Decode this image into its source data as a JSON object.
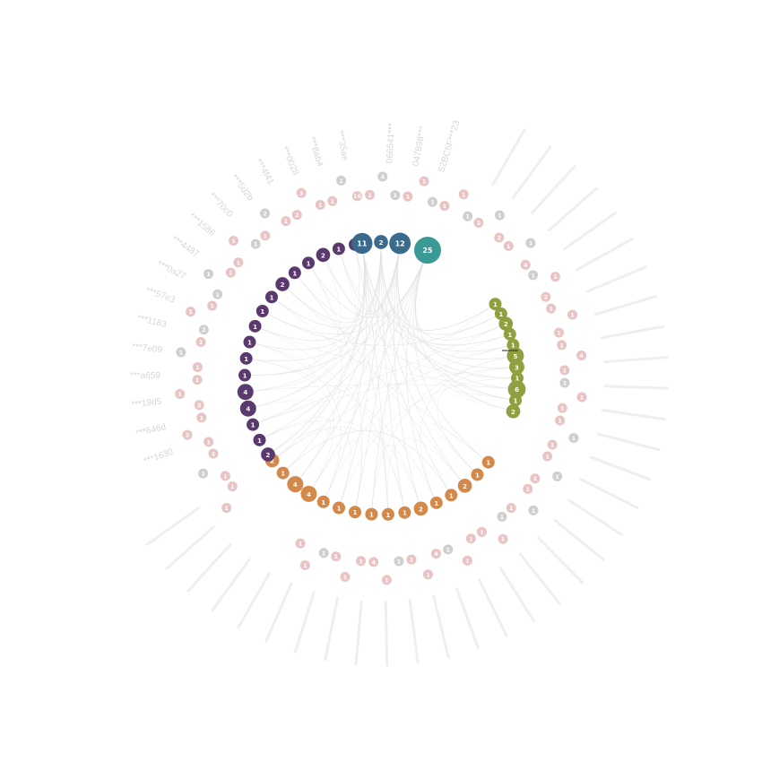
{
  "colors": {
    "purple": "#5a3a6e",
    "blue_dark": "#3a6b8c",
    "teal": "#3a9a96",
    "olive": "#8fa040",
    "orange": "#d4884a",
    "pink": "#e8c4c4",
    "gray": "#cfcfcf",
    "link": "#e2e2e2",
    "label": "#d6d6d6"
  },
  "inner_ring": {
    "purple": [
      "1",
      "1",
      "2",
      "1",
      "1",
      "2",
      "1",
      "1",
      "1",
      "1",
      "1",
      "1",
      "4",
      "4",
      "1",
      "1",
      "2"
    ],
    "blue": [
      "11",
      "2",
      "12"
    ],
    "teal": [
      "25"
    ],
    "olive": [
      "1",
      "1",
      "2",
      "1",
      "1",
      "5",
      "3",
      "1",
      "6",
      "1",
      "2"
    ],
    "orange": [
      "2",
      "1",
      "4",
      "4",
      "1",
      "1",
      "1",
      "1",
      "1",
      "1",
      "2",
      "1",
      "1",
      "2",
      "1",
      "1"
    ]
  },
  "outer_labels_left": [
    "***1630",
    "***646d",
    "***19d5",
    "***a659",
    "***7e09",
    "***1183",
    "***57e3",
    "***0a27",
    "***4487",
    "***1586",
    "***70c0",
    "***5d2b",
    "***4f41",
    "***0028",
    "***8ab4",
    "***35ae"
  ],
  "outer_labels_top": [
    "066541***",
    "047898***",
    "52BC5F***23"
  ],
  "outer_badges": [
    {
      "label": "1",
      "c": "pink"
    },
    {
      "label": "1",
      "c": "pink"
    },
    {
      "label": "1",
      "c": "pink"
    },
    {
      "label": "1",
      "c": "gray"
    },
    {
      "label": "1",
      "c": "pink"
    },
    {
      "label": "1",
      "c": "pink"
    },
    {
      "label": "2",
      "c": "pink"
    },
    {
      "label": "1",
      "c": "pink"
    },
    {
      "label": "3",
      "c": "pink"
    },
    {
      "label": "1",
      "c": "pink"
    },
    {
      "label": "1",
      "c": "pink"
    },
    {
      "label": "1",
      "c": "pink"
    },
    {
      "label": "1",
      "c": "gray"
    },
    {
      "label": "1",
      "c": "pink"
    },
    {
      "label": "2",
      "c": "gray"
    },
    {
      "label": "1",
      "c": "pink"
    },
    {
      "label": "1",
      "c": "pink"
    },
    {
      "label": "1",
      "c": "gray"
    },
    {
      "label": "1",
      "c": "gray"
    },
    {
      "label": "1",
      "c": "pink"
    },
    {
      "label": "1",
      "c": "pink"
    },
    {
      "label": "1",
      "c": "pink"
    },
    {
      "label": "1",
      "c": "gray"
    },
    {
      "label": "1",
      "c": "pink"
    },
    {
      "label": "2",
      "c": "gray"
    },
    {
      "label": "1",
      "c": "pink"
    },
    {
      "label": "2",
      "c": "pink"
    },
    {
      "label": "3",
      "c": "pink"
    },
    {
      "label": "1",
      "c": "pink"
    },
    {
      "label": "1",
      "c": "pink"
    },
    {
      "label": "1",
      "c": "gray"
    },
    {
      "label": "16",
      "c": "pink"
    },
    {
      "label": "1",
      "c": "pink"
    },
    {
      "label": "4",
      "c": "gray"
    },
    {
      "label": "1",
      "c": "gray"
    },
    {
      "label": "1",
      "c": "pink"
    },
    {
      "label": "1",
      "c": "pink"
    },
    {
      "label": "1",
      "c": "gray"
    },
    {
      "label": "1",
      "c": "pink"
    },
    {
      "label": "1",
      "c": "pink"
    },
    {
      "label": "1",
      "c": "gray"
    },
    {
      "label": "2",
      "c": "pink"
    },
    {
      "label": "1",
      "c": "gray"
    },
    {
      "label": "2",
      "c": "pink"
    },
    {
      "label": "1",
      "c": "pink"
    },
    {
      "label": "1",
      "c": "gray"
    },
    {
      "label": "4",
      "c": "pink"
    },
    {
      "label": "1",
      "c": "gray"
    },
    {
      "label": "1",
      "c": "pink"
    },
    {
      "label": "2",
      "c": "pink"
    },
    {
      "label": "1",
      "c": "pink"
    },
    {
      "label": "1",
      "c": "pink"
    },
    {
      "label": "1",
      "c": "pink"
    },
    {
      "label": "1",
      "c": "pink"
    },
    {
      "label": "4",
      "c": "pink"
    },
    {
      "label": "1",
      "c": "pink"
    },
    {
      "label": "1",
      "c": "gray"
    },
    {
      "label": "1",
      "c": "pink"
    },
    {
      "label": "1",
      "c": "pink"
    },
    {
      "label": "1",
      "c": "pink"
    },
    {
      "label": "1",
      "c": "gray"
    },
    {
      "label": "1",
      "c": "pink"
    },
    {
      "label": "1",
      "c": "pink"
    },
    {
      "label": "1",
      "c": "gray"
    },
    {
      "label": "1",
      "c": "pink"
    },
    {
      "label": "1",
      "c": "pink"
    },
    {
      "label": "1",
      "c": "gray"
    },
    {
      "label": "1",
      "c": "pink"
    },
    {
      "label": "1",
      "c": "gray"
    },
    {
      "label": "1",
      "c": "pink"
    },
    {
      "label": "1",
      "c": "pink"
    },
    {
      "label": "1",
      "c": "pink"
    },
    {
      "label": "1",
      "c": "pink"
    },
    {
      "label": "1",
      "c": "gray"
    },
    {
      "label": "4",
      "c": "pink"
    },
    {
      "label": "1",
      "c": "pink"
    },
    {
      "label": "1",
      "c": "pink"
    },
    {
      "label": "1",
      "c": "gray"
    },
    {
      "label": "1",
      "c": "pink"
    },
    {
      "label": "4",
      "c": "pink"
    },
    {
      "label": "1",
      "c": "pink"
    },
    {
      "label": "1",
      "c": "pink"
    },
    {
      "label": "1",
      "c": "pink"
    },
    {
      "label": "1",
      "c": "gray"
    },
    {
      "label": "1",
      "c": "pink"
    },
    {
      "label": "1",
      "c": "pink"
    }
  ]
}
